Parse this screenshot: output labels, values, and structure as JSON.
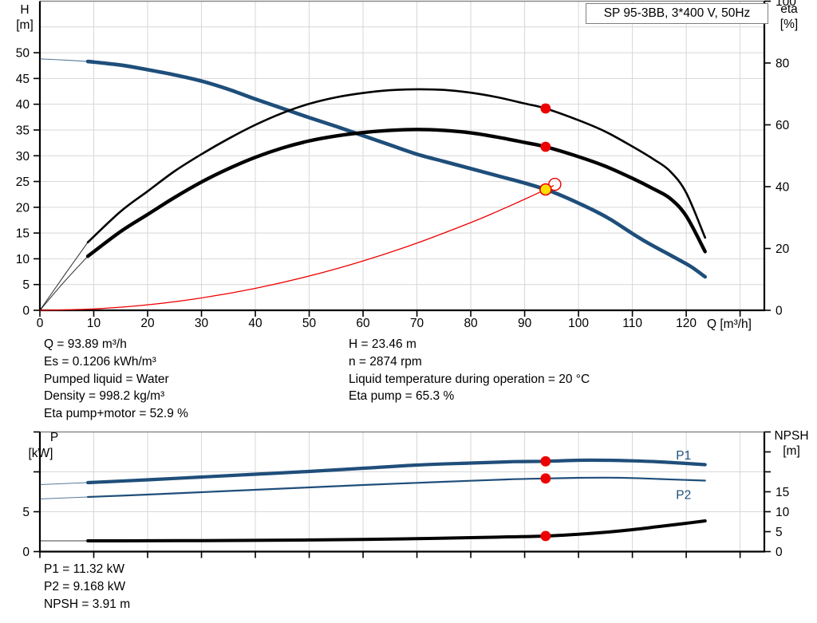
{
  "title_box": {
    "label": "SP 95-3BB, 3*400 V, 50Hz"
  },
  "axis_titles": {
    "top_left_line1": "H",
    "top_left_line2": "[m]",
    "top_right_line1": "eta",
    "top_right_line2": "[%]",
    "x_axis": "Q [m³/h]",
    "bottom_left_line1": "P",
    "bottom_left_line2": "[kW]",
    "bottom_right_line1": "NPSH",
    "bottom_right_line2": "[m]"
  },
  "info_top_left": {
    "lines": [
      "Q = 93.89 m³/h",
      "Es = 0.1206 kWh/m³",
      "Pumped liquid = Water",
      "Density = 998.2 kg/m³",
      "Eta pump+motor = 52.9 %"
    ]
  },
  "info_top_right": {
    "lines": [
      "H = 23.46 m",
      "n = 2874 rpm",
      "Liquid temperature during operation = 20 °C",
      "Eta pump = 65.3 %"
    ]
  },
  "info_bottom": {
    "lines": [
      "P1 = 11.32 kW",
      "P2 = 9.168 kW",
      "NPSH = 3.91 m"
    ]
  },
  "colors": {
    "curve_blue": "#1f4e7a",
    "curve_black": "#000000",
    "red": "#ee0000",
    "yellow": "#ffdf00",
    "grid": "#d7d7d7",
    "frame_gray": "#8a8a8a",
    "axis_black": "#000000"
  },
  "chart_data": [
    {
      "type": "line",
      "title": "SP 95-3BB, 3*400 V, 50Hz",
      "xlabel": "Q [m³/h]",
      "ylabel_left": "H [m]",
      "ylabel_right": "eta [%]",
      "xlim": [
        0,
        134.5
      ],
      "ylim_left": [
        0,
        60
      ],
      "ylim_right": [
        0,
        100
      ],
      "x_ticks": [
        0,
        10,
        20,
        30,
        40,
        50,
        60,
        70,
        80,
        90,
        100,
        110,
        120
      ],
      "left_ticks": [
        0,
        5,
        10,
        15,
        20,
        25,
        30,
        35,
        40,
        45,
        50
      ],
      "right_ticks": [
        0,
        20,
        40,
        60,
        80,
        100
      ],
      "grid": true,
      "series": [
        {
          "name": "head-curve",
          "label": "",
          "axis": "left",
          "color": "curve_blue",
          "width": 4.6,
          "points": [
            [
              0,
              48.8
            ],
            [
              5,
              48.55
            ],
            [
              8.9,
              48.3
            ],
            [
              15,
              47.6
            ],
            [
              20,
              46.7
            ],
            [
              25,
              45.7
            ],
            [
              30,
              44.5
            ],
            [
              35,
              42.9
            ],
            [
              40,
              41.0
            ],
            [
              45,
              39.2
            ],
            [
              50,
              37.4
            ],
            [
              55,
              35.7
            ],
            [
              60,
              33.9
            ],
            [
              65,
              32.1
            ],
            [
              70,
              30.3
            ],
            [
              75,
              28.9
            ],
            [
              80,
              27.5
            ],
            [
              85,
              26.1
            ],
            [
              90,
              24.7
            ],
            [
              93.89,
              23.46
            ],
            [
              97,
              22.2
            ],
            [
              100,
              20.8
            ],
            [
              103,
              19.3
            ],
            [
              106,
              17.6
            ],
            [
              110,
              14.9
            ],
            [
              113,
              13.0
            ],
            [
              116,
              11.3
            ],
            [
              119,
              9.6
            ],
            [
              121,
              8.4
            ],
            [
              123.5,
              6.5
            ]
          ]
        },
        {
          "name": "eta-pump-curve",
          "label": "",
          "axis": "right",
          "color": "curve_black",
          "width": 2.6,
          "points": [
            [
              0,
              0
            ],
            [
              4.4,
              11
            ],
            [
              8.9,
              22
            ],
            [
              15,
              32
            ],
            [
              20,
              38.5
            ],
            [
              25,
              45
            ],
            [
              30,
              50.5
            ],
            [
              35,
              55.5
            ],
            [
              40,
              60
            ],
            [
              45,
              63.8
            ],
            [
              50,
              66.8
            ],
            [
              55,
              68.9
            ],
            [
              60,
              70.3
            ],
            [
              65,
              71.2
            ],
            [
              70,
              71.5
            ],
            [
              75,
              71.3
            ],
            [
              80,
              70.4
            ],
            [
              85,
              68.9
            ],
            [
              90,
              66.9
            ],
            [
              93.89,
              65.3
            ],
            [
              100,
              61.5
            ],
            [
              105,
              57.8
            ],
            [
              110,
              53
            ],
            [
              114,
              48.8
            ],
            [
              117,
              45
            ],
            [
              120,
              38
            ],
            [
              123.5,
              23.5
            ]
          ]
        },
        {
          "name": "eta-pump-plus-motor-curve",
          "label": "",
          "axis": "right",
          "color": "curve_black",
          "width": 4.4,
          "points": [
            [
              0,
              0
            ],
            [
              4.4,
              9
            ],
            [
              8.9,
              17.5
            ],
            [
              15,
              25.5
            ],
            [
              20,
              31
            ],
            [
              25,
              36.5
            ],
            [
              30,
              41.5
            ],
            [
              35,
              45.8
            ],
            [
              40,
              49.5
            ],
            [
              45,
              52.5
            ],
            [
              50,
              54.8
            ],
            [
              55,
              56.4
            ],
            [
              60,
              57.5
            ],
            [
              65,
              58.2
            ],
            [
              70,
              58.5
            ],
            [
              75,
              58.2
            ],
            [
              80,
              57.4
            ],
            [
              85,
              56
            ],
            [
              90,
              54.3
            ],
            [
              93.89,
              52.9
            ],
            [
              100,
              49.7
            ],
            [
              105,
              46.6
            ],
            [
              110,
              42.7
            ],
            [
              114,
              39.2
            ],
            [
              117,
              36.2
            ],
            [
              120,
              30.5
            ],
            [
              123.5,
              19
            ]
          ]
        },
        {
          "name": "system-curve",
          "label": "",
          "axis": "left",
          "color": "red",
          "width": 1.3,
          "nosplit": true,
          "points": [
            [
              0,
              0
            ],
            [
              10,
              0.27
            ],
            [
              20,
              1.06
            ],
            [
              30,
              2.4
            ],
            [
              40,
              4.26
            ],
            [
              50,
              6.65
            ],
            [
              60,
              9.58
            ],
            [
              70,
              13.04
            ],
            [
              80,
              17.03
            ],
            [
              85,
              19.23
            ],
            [
              90,
              21.56
            ],
            [
              93.89,
              23.46
            ],
            [
              95.4,
              24.22
            ]
          ]
        }
      ],
      "markers": [
        {
          "name": "system-curve-end-marker",
          "axis": "left",
          "q": 95.6,
          "value": 24.45,
          "style": "red-open"
        },
        {
          "name": "duty-point-marker",
          "axis": "left",
          "q": 93.89,
          "value": 23.46,
          "style": "yellow-ring"
        },
        {
          "name": "eta-pump-duty-dot",
          "axis": "right",
          "q": 93.89,
          "value": 65.3,
          "style": "red-dot"
        },
        {
          "name": "eta-pump-plus-motor-duty-dot",
          "axis": "right",
          "q": 93.89,
          "value": 52.9,
          "style": "red-dot"
        }
      ]
    },
    {
      "type": "line",
      "title": "",
      "xlabel": "",
      "ylabel_left": "P [kW]",
      "ylabel_right": "NPSH [m]",
      "xlim": [
        0,
        134.5
      ],
      "ylim_left": [
        0,
        15
      ],
      "ylim_right": [
        0,
        30
      ],
      "x_ticks": [],
      "left_ticks": [
        0,
        5,
        10
      ],
      "left_tick_labels": [
        0,
        5
      ],
      "right_ticks": [
        0,
        5,
        10,
        15,
        20,
        25
      ],
      "right_tick_labels": [
        0,
        5,
        10,
        15
      ],
      "grid": true,
      "series": [
        {
          "name": "p1-curve",
          "label": "P1",
          "label_q": 119.5,
          "label_value": 12.05,
          "axis": "left",
          "color": "curve_blue",
          "width": 4.2,
          "points": [
            [
              0,
              8.4
            ],
            [
              8.9,
              8.65
            ],
            [
              20,
              9.0
            ],
            [
              30,
              9.35
            ],
            [
              40,
              9.7
            ],
            [
              50,
              10.05
            ],
            [
              60,
              10.45
            ],
            [
              70,
              10.85
            ],
            [
              80,
              11.1
            ],
            [
              88,
              11.28
            ],
            [
              93.89,
              11.32
            ],
            [
              100,
              11.45
            ],
            [
              105,
              11.45
            ],
            [
              110,
              11.38
            ],
            [
              115,
              11.25
            ],
            [
              120,
              11.05
            ],
            [
              123.5,
              10.9
            ]
          ]
        },
        {
          "name": "p2-curve",
          "label": "P2",
          "label_q": 119.5,
          "label_value": 7.1,
          "axis": "left",
          "color": "curve_blue",
          "width": 2.2,
          "points": [
            [
              0,
              6.6
            ],
            [
              8.9,
              6.85
            ],
            [
              20,
              7.15
            ],
            [
              30,
              7.45
            ],
            [
              40,
              7.75
            ],
            [
              50,
              8.05
            ],
            [
              60,
              8.35
            ],
            [
              70,
              8.62
            ],
            [
              80,
              8.88
            ],
            [
              88,
              9.08
            ],
            [
              93.89,
              9.168
            ],
            [
              100,
              9.25
            ],
            [
              105,
              9.27
            ],
            [
              110,
              9.22
            ],
            [
              115,
              9.1
            ],
            [
              120,
              8.98
            ],
            [
              123.5,
              8.9
            ]
          ]
        },
        {
          "name": "npsh-curve",
          "label": "",
          "axis": "right",
          "color": "curve_black",
          "width": 4.0,
          "points": [
            [
              0,
              2.7
            ],
            [
              8.9,
              2.7
            ],
            [
              20,
              2.72
            ],
            [
              30,
              2.76
            ],
            [
              40,
              2.82
            ],
            [
              50,
              2.92
            ],
            [
              60,
              3.05
            ],
            [
              70,
              3.25
            ],
            [
              80,
              3.5
            ],
            [
              87,
              3.7
            ],
            [
              93.89,
              3.91
            ],
            [
              100,
              4.35
            ],
            [
              105,
              4.85
            ],
            [
              110,
              5.5
            ],
            [
              115,
              6.3
            ],
            [
              120,
              7.1
            ],
            [
              123.5,
              7.7
            ]
          ]
        }
      ],
      "markers": [
        {
          "name": "p1-duty-dot",
          "axis": "left",
          "q": 93.89,
          "value": 11.32,
          "style": "red-dot"
        },
        {
          "name": "p2-duty-dot",
          "axis": "left",
          "q": 93.89,
          "value": 9.168,
          "style": "red-dot"
        },
        {
          "name": "npsh-duty-dot",
          "axis": "right",
          "q": 93.89,
          "value": 3.91,
          "style": "red-dot"
        }
      ]
    }
  ]
}
